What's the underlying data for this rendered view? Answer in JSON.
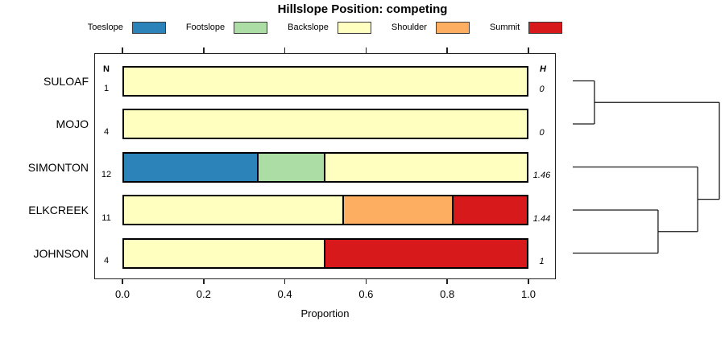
{
  "title": "Hillslope Position: competing",
  "legend_classes": [
    {
      "name": "Toeslope",
      "color": "#2B83BA"
    },
    {
      "name": "Footslope",
      "color": "#ABDDA4"
    },
    {
      "name": "Backslope",
      "color": "#FFFFBF"
    },
    {
      "name": "Shoulder",
      "color": "#FDAE61"
    },
    {
      "name": "Summit",
      "color": "#D7191C"
    }
  ],
  "columns": {
    "n_header": "N",
    "h_header": "H"
  },
  "chart_data": {
    "type": "bar",
    "orientation": "horizontal-stacked",
    "title": "Hillslope Position: competing",
    "xlabel": "Proportion",
    "xlim": [
      0,
      1
    ],
    "grid": false,
    "legend_position": "top",
    "xticks": [
      {
        "label": "0.0",
        "v": 0.0
      },
      {
        "label": "0.2",
        "v": 0.2
      },
      {
        "label": "0.4",
        "v": 0.4
      },
      {
        "label": "0.6",
        "v": 0.6
      },
      {
        "label": "0.8",
        "v": 0.8
      },
      {
        "label": "1.0",
        "v": 1.0
      }
    ],
    "categories": [
      "SULOAF",
      "MOJO",
      "SIMONTON",
      "ELKCREEK",
      "JOHNSON"
    ],
    "rows": [
      {
        "site": "SULOAF",
        "n": "1",
        "h": "0",
        "segments": [
          {
            "class": "Backslope",
            "value": 1.0
          }
        ]
      },
      {
        "site": "MOJO",
        "n": "4",
        "h": "0",
        "segments": [
          {
            "class": "Backslope",
            "value": 1.0
          }
        ]
      },
      {
        "site": "SIMONTON",
        "n": "12",
        "h": "1.46",
        "segments": [
          {
            "class": "Toeslope",
            "value": 0.3333
          },
          {
            "class": "Footslope",
            "value": 0.1667
          },
          {
            "class": "Backslope",
            "value": 0.5
          }
        ]
      },
      {
        "site": "ELKCREEK",
        "n": "11",
        "h": "1.44",
        "segments": [
          {
            "class": "Backslope",
            "value": 0.5455
          },
          {
            "class": "Shoulder",
            "value": 0.2727
          },
          {
            "class": "Summit",
            "value": 0.1818
          }
        ]
      },
      {
        "site": "JOHNSON",
        "n": "4",
        "h": "1",
        "segments": [
          {
            "class": "Backslope",
            "value": 0.5
          },
          {
            "class": "Summit",
            "value": 0.5
          }
        ]
      }
    ],
    "dendrogram": {
      "root": {
        "h": 1.0,
        "children": [
          {
            "h": 0.148,
            "children": [
              {
                "leaf": "SULOAF"
              },
              {
                "leaf": "MOJO"
              }
            ]
          },
          {
            "h": 0.852,
            "children": [
              {
                "leaf": "SIMONTON"
              },
              {
                "h": 0.582,
                "children": [
                  {
                    "leaf": "ELKCREEK"
                  },
                  {
                    "leaf": "JOHNSON"
                  }
                ]
              }
            ]
          }
        ]
      }
    }
  }
}
